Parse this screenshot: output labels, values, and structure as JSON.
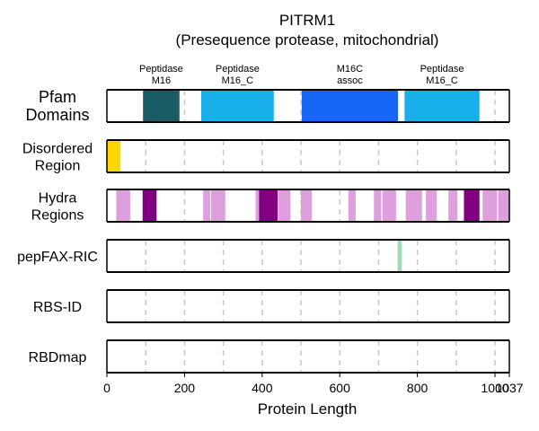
{
  "chart_data": {
    "type": "track",
    "title": "PITRM1",
    "subtitle": "(Presequence protease, mitochondrial)",
    "xlabel": "Protein Length",
    "xlim": [
      0,
      1037
    ],
    "xticks": [
      0,
      200,
      400,
      600,
      800,
      1000,
      1037
    ],
    "tick_labels": [
      "0",
      "200",
      "400",
      "600",
      "800",
      "1000",
      "1037"
    ],
    "gridlines": [
      100,
      200,
      300,
      400,
      500,
      600,
      700,
      800,
      900,
      1000
    ],
    "tracks": [
      {
        "key": "pfam",
        "label_lines": [
          "Pfam",
          "Domains"
        ],
        "segments": [
          {
            "start": 93,
            "end": 187,
            "color": "#1a5c63",
            "label_lines": [
              "Peptidase",
              "M16"
            ]
          },
          {
            "start": 243,
            "end": 430,
            "color": "#17aeea",
            "label_lines": [
              "Peptidase",
              "M16_C"
            ]
          },
          {
            "start": 502,
            "end": 750,
            "color": "#1566f4",
            "label_lines": [
              "M16C",
              "assoc"
            ]
          },
          {
            "start": 767,
            "end": 960,
            "color": "#17aeea",
            "label_lines": [
              "Peptidase",
              "M16_C"
            ]
          }
        ]
      },
      {
        "key": "disordered",
        "label_lines": [
          "Disordered",
          "Region"
        ],
        "segments": [
          {
            "start": 0,
            "end": 35,
            "color": "#ffd700"
          }
        ]
      },
      {
        "key": "hydra",
        "label_lines": [
          "Hydra",
          "Regions"
        ],
        "segments": [
          {
            "start": 24,
            "end": 60,
            "color": "#dda0dd"
          },
          {
            "start": 92,
            "end": 128,
            "color": "#800080"
          },
          {
            "start": 248,
            "end": 266,
            "color": "#dda0dd"
          },
          {
            "start": 268,
            "end": 305,
            "color": "#dda0dd"
          },
          {
            "start": 383,
            "end": 392,
            "color": "#dda0dd"
          },
          {
            "start": 392,
            "end": 440,
            "color": "#800080"
          },
          {
            "start": 442,
            "end": 473,
            "color": "#dda0dd"
          },
          {
            "start": 500,
            "end": 528,
            "color": "#dda0dd"
          },
          {
            "start": 622,
            "end": 641,
            "color": "#dda0dd"
          },
          {
            "start": 688,
            "end": 707,
            "color": "#dda0dd"
          },
          {
            "start": 710,
            "end": 745,
            "color": "#dda0dd"
          },
          {
            "start": 770,
            "end": 812,
            "color": "#dda0dd"
          },
          {
            "start": 822,
            "end": 850,
            "color": "#dda0dd"
          },
          {
            "start": 880,
            "end": 903,
            "color": "#dda0dd"
          },
          {
            "start": 920,
            "end": 960,
            "color": "#800080"
          },
          {
            "start": 968,
            "end": 1005,
            "color": "#dda0dd"
          },
          {
            "start": 1008,
            "end": 1037,
            "color": "#dda0dd"
          }
        ]
      },
      {
        "key": "pepfax",
        "label_lines": [
          "pepFAX-RIC"
        ],
        "segments": [
          {
            "start": 749,
            "end": 760,
            "color": "#9fdcb8"
          }
        ]
      },
      {
        "key": "rbsid",
        "label_lines": [
          "RBS-ID"
        ],
        "segments": []
      },
      {
        "key": "rbdmap",
        "label_lines": [
          "RBDmap"
        ],
        "segments": []
      }
    ]
  }
}
